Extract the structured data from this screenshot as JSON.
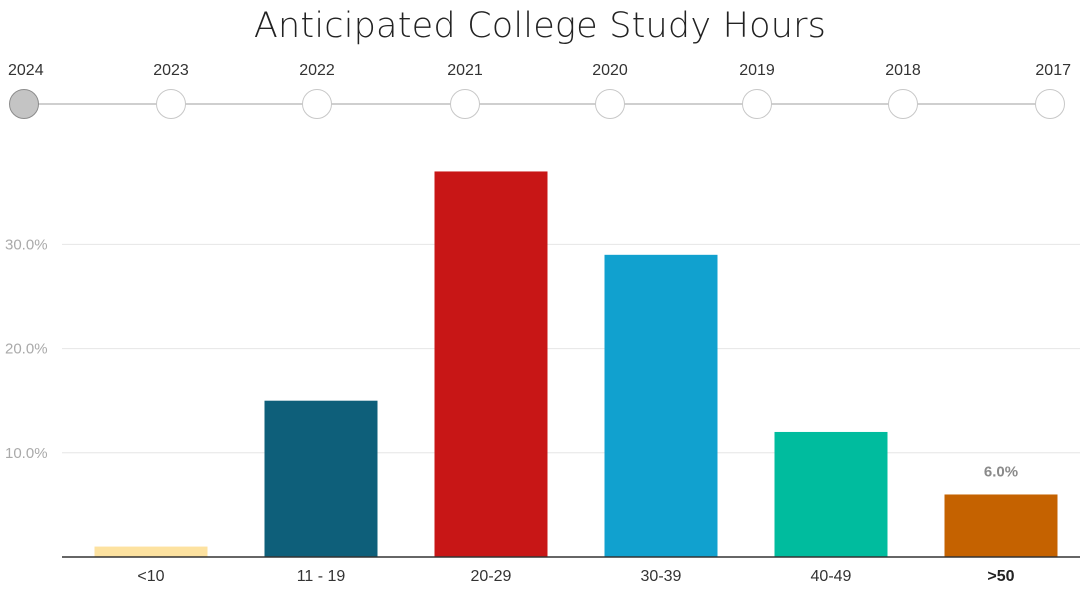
{
  "timeline": {
    "years": [
      "2024",
      "2023",
      "2022",
      "2021",
      "2020",
      "2019",
      "2018",
      "2017"
    ],
    "selected": "2024"
  },
  "chart_data": {
    "type": "bar",
    "title": "Anticipated College Study Hours",
    "categories": [
      "<10",
      "11 - 19",
      "20-29",
      "30-39",
      "40-49",
      ">50"
    ],
    "values": [
      1.0,
      15.0,
      37.0,
      29.0,
      12.0,
      6.0
    ],
    "colors": [
      "#fde2a0",
      "#0e5f7a",
      "#c81616",
      "#11a1cf",
      "#00bc9e",
      "#c56200"
    ],
    "highlighted_category": ">50",
    "highlighted_label": "6.0%",
    "ylim": [
      0,
      40
    ],
    "yticks": [
      10,
      20,
      30
    ],
    "ytick_labels": [
      "10.0%",
      "20.0%",
      "30.0%"
    ],
    "grid": true,
    "legend": "none"
  }
}
